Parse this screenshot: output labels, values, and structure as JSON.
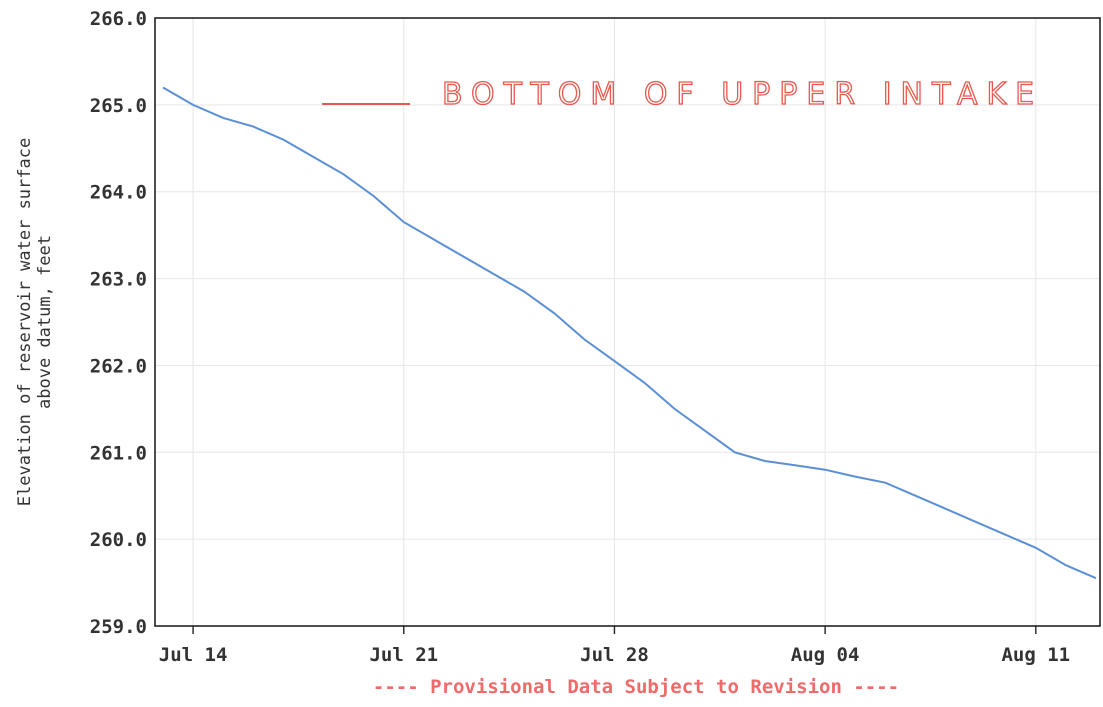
{
  "chart_data": {
    "type": "line",
    "ylabel_line1": "Elevation of reservoir water surface",
    "ylabel_line2": "above datum, feet",
    "ylim": [
      259.0,
      266.0
    ],
    "y_ticks": [
      {
        "value": 259.0,
        "label": "259.0"
      },
      {
        "value": 260.0,
        "label": "260.0"
      },
      {
        "value": 261.0,
        "label": "261.0"
      },
      {
        "value": 262.0,
        "label": "262.0"
      },
      {
        "value": 263.0,
        "label": "263.0"
      },
      {
        "value": 264.0,
        "label": "264.0"
      },
      {
        "value": 265.0,
        "label": "265.0"
      },
      {
        "value": 266.0,
        "label": "266.0"
      }
    ],
    "xlim": [
      "2020-07-13",
      "2020-08-13"
    ],
    "x_ticks": [
      {
        "value": "2020-07-14",
        "label": "Jul 14"
      },
      {
        "value": "2020-07-21",
        "label": "Jul 21"
      },
      {
        "value": "2020-07-28",
        "label": "Jul 28"
      },
      {
        "value": "2020-08-04",
        "label": "Aug 04"
      },
      {
        "value": "2020-08-11",
        "label": "Aug 11"
      }
    ],
    "grid": true,
    "series": [
      {
        "color": "#5b8fd4",
        "points": [
          {
            "x": "2020-07-13",
            "y": 265.2
          },
          {
            "x": "2020-07-14",
            "y": 265.0
          },
          {
            "x": "2020-07-15",
            "y": 264.85
          },
          {
            "x": "2020-07-16",
            "y": 264.75
          },
          {
            "x": "2020-07-17",
            "y": 264.6
          },
          {
            "x": "2020-07-18",
            "y": 264.4
          },
          {
            "x": "2020-07-19",
            "y": 264.2
          },
          {
            "x": "2020-07-20",
            "y": 263.95
          },
          {
            "x": "2020-07-21",
            "y": 263.65
          },
          {
            "x": "2020-07-22",
            "y": 263.45
          },
          {
            "x": "2020-07-23",
            "y": 263.25
          },
          {
            "x": "2020-07-24",
            "y": 263.05
          },
          {
            "x": "2020-07-25",
            "y": 262.85
          },
          {
            "x": "2020-07-26",
            "y": 262.6
          },
          {
            "x": "2020-07-27",
            "y": 262.3
          },
          {
            "x": "2020-07-28",
            "y": 262.05
          },
          {
            "x": "2020-07-29",
            "y": 261.8
          },
          {
            "x": "2020-07-30",
            "y": 261.5
          },
          {
            "x": "2020-07-31",
            "y": 261.25
          },
          {
            "x": "2020-08-01",
            "y": 261.0
          },
          {
            "x": "2020-08-02",
            "y": 260.9
          },
          {
            "x": "2020-08-03",
            "y": 260.85
          },
          {
            "x": "2020-08-04",
            "y": 260.8
          },
          {
            "x": "2020-08-05",
            "y": 260.72
          },
          {
            "x": "2020-08-06",
            "y": 260.65
          },
          {
            "x": "2020-08-07",
            "y": 260.5
          },
          {
            "x": "2020-08-08",
            "y": 260.35
          },
          {
            "x": "2020-08-09",
            "y": 260.2
          },
          {
            "x": "2020-08-10",
            "y": 260.05
          },
          {
            "x": "2020-08-11",
            "y": 259.9
          },
          {
            "x": "2020-08-12",
            "y": 259.7
          },
          {
            "x": "2020-08-13",
            "y": 259.55
          }
        ]
      }
    ],
    "annotation_handwritten": "BOTTOM OF UPPER INTAKE",
    "annotation_handwritten_color": "#e8584f",
    "footnote": "---- Provisional Data Subject to Revision ----",
    "footnote_color": "#f06a6a"
  }
}
